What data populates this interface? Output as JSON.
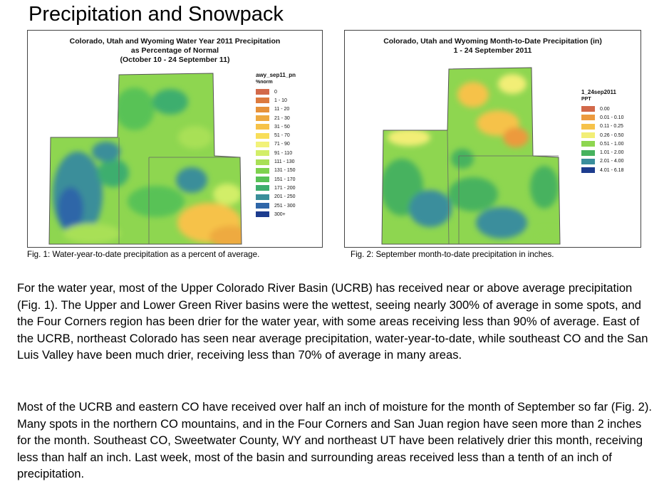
{
  "title": "Precipitation and Snowpack",
  "fig1": {
    "title_lines": [
      "Colorado, Utah and Wyoming Water Year 2011 Precipitation",
      "as Percentage of Normal",
      "(October 10 - 24 September 11)"
    ],
    "legend_title": "awy_sep11_pn",
    "legend_unit": "%norm",
    "legend": [
      {
        "label": "0",
        "color": "#d2694a"
      },
      {
        "label": "1 - 10",
        "color": "#dc7a3e"
      },
      {
        "label": "11 - 20",
        "color": "#e6923a"
      },
      {
        "label": "21 - 30",
        "color": "#eeaa40"
      },
      {
        "label": "31 - 50",
        "color": "#f6c248"
      },
      {
        "label": "51 - 70",
        "color": "#f8de5a"
      },
      {
        "label": "71 - 90",
        "color": "#f2f27a"
      },
      {
        "label": "91 - 110",
        "color": "#d2ee68"
      },
      {
        "label": "111 - 130",
        "color": "#a8e056"
      },
      {
        "label": "131 - 150",
        "color": "#7ed24e"
      },
      {
        "label": "151 - 170",
        "color": "#58c256"
      },
      {
        "label": "171 - 200",
        "color": "#3eae6e"
      },
      {
        "label": "201 - 250",
        "color": "#3a8e9a"
      },
      {
        "label": "251 - 300",
        "color": "#2f66a8"
      },
      {
        "label": "300+",
        "color": "#1d3c8e"
      }
    ],
    "caption": "Fig. 1: Water-year-to-date precipitation as a percent of average."
  },
  "fig2": {
    "title_lines": [
      "Colorado, Utah and Wyoming Month-to-Date Precipitation (in)",
      "1 - 24 September 2011"
    ],
    "legend_title": "1_24sep2011",
    "legend_unit": "PPT",
    "legend": [
      {
        "label": "0.00",
        "color": "#d2694a"
      },
      {
        "label": "0.01 - 0.10",
        "color": "#ec9a3e"
      },
      {
        "label": "0.11 - 0.25",
        "color": "#f6c24a"
      },
      {
        "label": "0.26 - 0.50",
        "color": "#f2ee76"
      },
      {
        "label": "0.51 - 1.00",
        "color": "#8ed650"
      },
      {
        "label": "1.01 - 2.00",
        "color": "#46b25e"
      },
      {
        "label": "2.01 - 4.00",
        "color": "#3a8e9c"
      },
      {
        "label": "4.01 - 6.18",
        "color": "#1d3c8e"
      }
    ],
    "caption": "Fig. 2:  September month-to-date precipitation in inches."
  },
  "paragraphs": [
    "For the water year, most of the Upper Colorado River Basin (UCRB) has received near or above average precipitation (Fig. 1).  The Upper and Lower Green River basins were the wettest, seeing nearly 300% of average in some spots, and the Four Corners region has been drier for the water year, with some areas receiving less than 90% of average.  East of the UCRB, northeast Colorado has seen near average precipitation, water-year-to-date, while southeast CO and the San Luis Valley have been much drier, receiving less than 70% of average in many areas.",
    "Most of the UCRB and eastern CO have received over half an inch of moisture for the month of September so far (Fig. 2).  Many spots in the northern CO mountains, and in the Four Corners and San Juan region have seen more than 2 inches for the month.  Southeast CO, Sweetwater County, WY and northeast UT have been relatively drier this month, receiving less than half an inch.  Last week, most of the basin and surrounding areas received less than a tenth of an inch of precipitation."
  ]
}
